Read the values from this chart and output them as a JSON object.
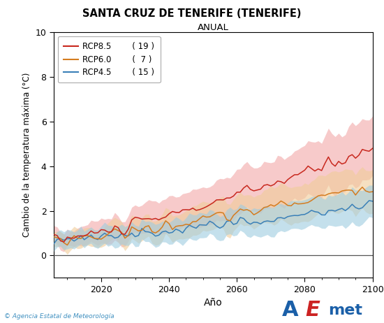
{
  "title": "SANTA CRUZ DE TENERIFE (TENERIFE)",
  "subtitle": "ANUAL",
  "xlabel": "Año",
  "ylabel": "Cambio de la temperatura máxima (°C)",
  "xlim": [
    2006,
    2100
  ],
  "ylim": [
    -1,
    10
  ],
  "xticks": [
    2020,
    2040,
    2060,
    2080,
    2100
  ],
  "yticks": [
    0,
    2,
    4,
    6,
    8,
    10
  ],
  "rcp85_color": "#c8281e",
  "rcp85_band_color": "#f2a8a8",
  "rcp60_color": "#d47c20",
  "rcp60_band_color": "#f0cc98",
  "rcp45_color": "#3a80b8",
  "rcp45_band_color": "#9ecce0",
  "legend_labels": [
    "RCP8.5",
    "RCP6.0",
    "RCP4.5"
  ],
  "legend_counts": [
    "( 19 )",
    "(  7 )",
    "( 15 )"
  ],
  "start_year": 2006,
  "end_year": 2100,
  "background_color": "#ffffff",
  "footer_text": "© Agencia Estatal de Meteorología",
  "footer_color": "#4090c0",
  "hline_color": "#555555"
}
